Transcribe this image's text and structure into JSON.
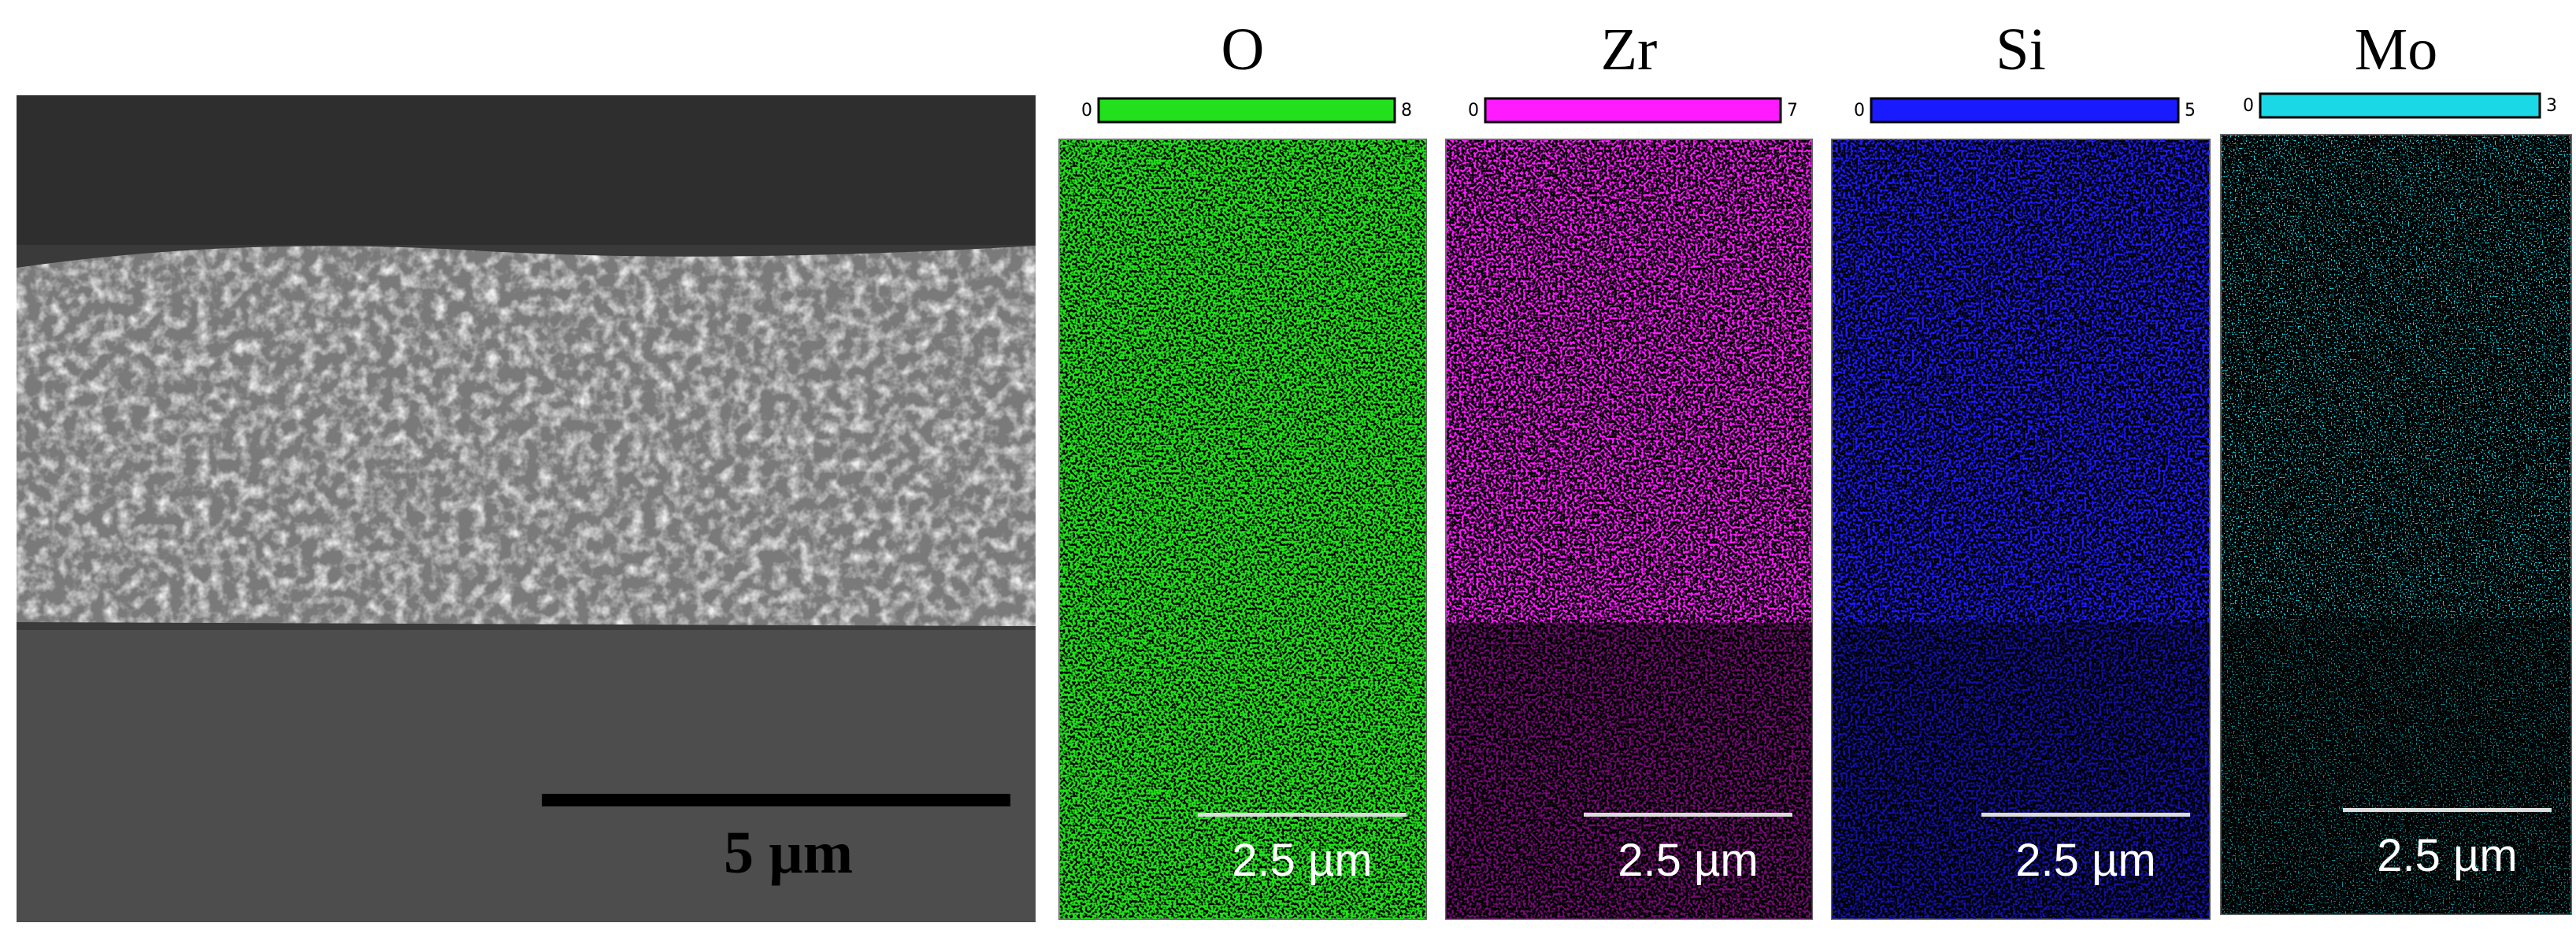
{
  "sem": {
    "scale_label": "5 µm"
  },
  "maps": [
    {
      "element": "O",
      "min": 0,
      "max": 8,
      "scale_label": "2.5 µm",
      "color": "#22e01c"
    },
    {
      "element": "Zr",
      "min": 0,
      "max": 7,
      "scale_label": "2.5 µm",
      "color": "#ff1aff"
    },
    {
      "element": "Si",
      "min": 0,
      "max": 5,
      "scale_label": "2.5 µm",
      "color": "#1a1aff"
    },
    {
      "element": "Mo",
      "min": 0,
      "max": 3,
      "scale_label": "2.5 µm",
      "color": "#1ad8e6"
    }
  ]
}
